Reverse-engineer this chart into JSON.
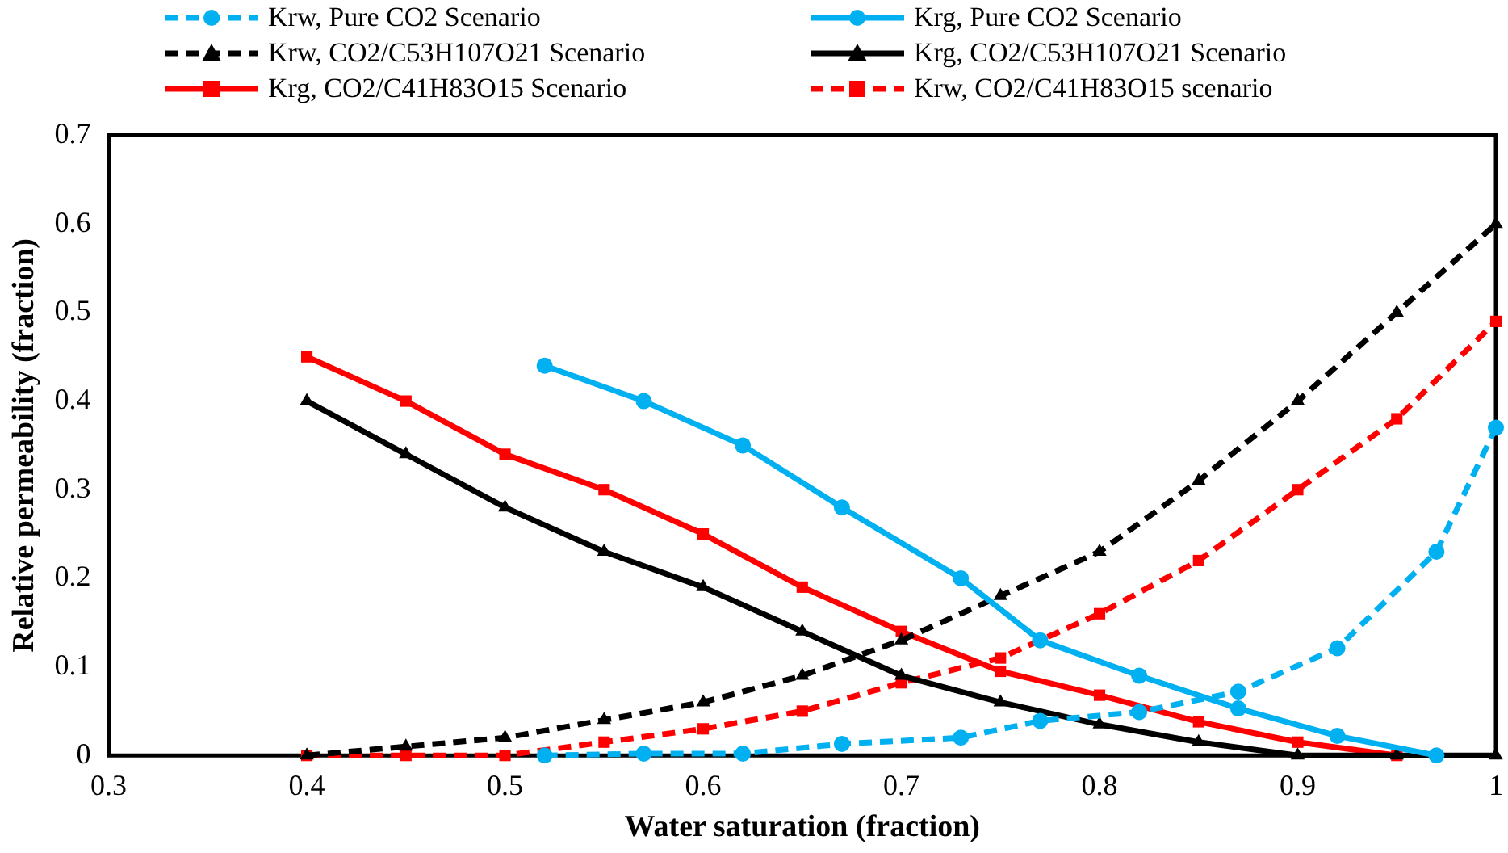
{
  "chart_data": {
    "type": "line",
    "xlabel": "Water saturation (fraction)",
    "ylabel": "Relative permeability (fraction)",
    "xlim": [
      0.3,
      1
    ],
    "xticks": [
      0.3,
      0.4,
      0.5,
      0.6,
      0.7,
      0.8,
      0.9,
      {
        "value": 1,
        "label": "1"
      }
    ],
    "ylim": [
      0,
      0.7
    ],
    "yticks": [
      0,
      0.1,
      0.2,
      0.3,
      0.4,
      0.5,
      0.6,
      0.7
    ],
    "grid": false,
    "legend": "top",
    "series": [
      {
        "name": "Krw, Pure CO2 Scenario",
        "color": "#00b0f0",
        "marker": "circle",
        "line_style": "dashed",
        "x": [
          0.52,
          0.57,
          0.62,
          0.67,
          0.73,
          0.77,
          0.82,
          0.87,
          0.92,
          0.97,
          1.0
        ],
        "values": [
          0,
          0.002,
          0.002,
          0.013,
          0.02,
          0.039,
          0.049,
          0.072,
          0.121,
          0.23,
          0.37
        ]
      },
      {
        "name": "Krg, Pure CO2 Scenario",
        "color": "#00b0f0",
        "marker": "circle",
        "line_style": "solid",
        "x": [
          0.52,
          0.57,
          0.62,
          0.67,
          0.73,
          0.77,
          0.82,
          0.87,
          0.92,
          0.97
        ],
        "values": [
          0.44,
          0.4,
          0.35,
          0.28,
          0.2,
          0.13,
          0.09,
          0.053,
          0.022,
          0
        ]
      },
      {
        "name": "Krw, CO2/C53H107O21 Scenario",
        "color": "#000000",
        "marker": "triangle",
        "line_style": "dashed",
        "x": [
          0.4,
          0.45,
          0.5,
          0.55,
          0.6,
          0.65,
          0.7,
          0.75,
          0.8,
          0.85,
          0.9,
          0.95,
          1.0
        ],
        "values": [
          0,
          0.01,
          0.02,
          0.04,
          0.06,
          0.09,
          0.13,
          0.18,
          0.23,
          0.31,
          0.4,
          0.5,
          0.6
        ]
      },
      {
        "name": "Krg, CO2/C53H107O21 Scenario",
        "color": "#000000",
        "marker": "triangle",
        "line_style": "solid",
        "x": [
          0.4,
          0.45,
          0.5,
          0.55,
          0.6,
          0.65,
          0.7,
          0.75,
          0.8,
          0.85,
          0.9,
          0.95,
          1.0
        ],
        "values": [
          0.4,
          0.34,
          0.28,
          0.23,
          0.19,
          0.14,
          0.09,
          0.06,
          0.035,
          0.015,
          0,
          0,
          0
        ]
      },
      {
        "name": "Krg, CO2/C41H83O15 Scenario",
        "color": "#ff0000",
        "marker": "square",
        "line_style": "solid",
        "x": [
          0.4,
          0.45,
          0.5,
          0.55,
          0.6,
          0.65,
          0.7,
          0.75,
          0.8,
          0.85,
          0.9,
          0.95
        ],
        "values": [
          0.45,
          0.4,
          0.34,
          0.3,
          0.25,
          0.19,
          0.14,
          0.095,
          0.068,
          0.038,
          0.015,
          0
        ]
      },
      {
        "name": "Krw, CO2/C41H83O15 scenario",
        "color": "#ff0000",
        "marker": "square",
        "line_style": "dashed",
        "x": [
          0.4,
          0.45,
          0.5,
          0.55,
          0.6,
          0.65,
          0.7,
          0.75,
          0.8,
          0.85,
          0.9,
          0.95,
          1.0
        ],
        "values": [
          0,
          0,
          0,
          0.015,
          0.03,
          0.05,
          0.082,
          0.11,
          0.16,
          0.22,
          0.3,
          0.38,
          0.49
        ]
      }
    ]
  }
}
